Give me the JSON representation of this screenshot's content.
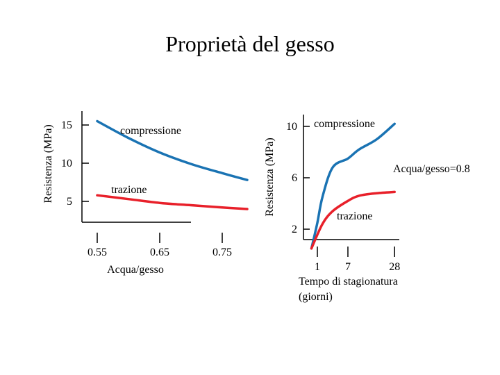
{
  "page": {
    "title": "Proprietà del gesso"
  },
  "colors": {
    "compressione": "#1a73b3",
    "trazione": "#e8202a",
    "axis": "#000000"
  },
  "chart_data": [
    {
      "type": "line",
      "title": "",
      "xlabel": "Acqua/gesso",
      "ylabel": "Resistenza (MPa)",
      "x_ticks": [
        "0.55",
        "0.65",
        "0.75"
      ],
      "y_ticks": [
        "5",
        "10",
        "15"
      ],
      "series": [
        {
          "name": "compressione",
          "x": [
            0.55,
            0.6,
            0.65,
            0.7,
            0.75,
            0.79
          ],
          "y": [
            15.5,
            13.3,
            11.4,
            9.9,
            8.7,
            7.8
          ]
        },
        {
          "name": "trazione",
          "x": [
            0.55,
            0.6,
            0.65,
            0.7,
            0.75,
            0.79
          ],
          "y": [
            5.8,
            5.3,
            4.8,
            4.5,
            4.2,
            4.0
          ]
        }
      ]
    },
    {
      "type": "line",
      "title": "",
      "xlabel": "Tempo di stagionatura (giorni)",
      "ylabel": "Resistenza (MPa)",
      "annotation": "Acqua/gesso=0.8",
      "x_ticks": [
        "1",
        "7",
        "28"
      ],
      "y_ticks": [
        "2",
        "6",
        "10"
      ],
      "series": [
        {
          "name": "compressione",
          "x": [
            0.5,
            1,
            2,
            4,
            7,
            12,
            20,
            28
          ],
          "y": [
            0.5,
            2.5,
            4.5,
            6.8,
            7.5,
            8.2,
            9.0,
            10.2
          ]
        },
        {
          "name": "trazione",
          "x": [
            0.5,
            2,
            4,
            7,
            12,
            20,
            28
          ],
          "y": [
            0.5,
            2.4,
            3.4,
            4.2,
            4.6,
            4.8,
            4.9
          ]
        }
      ]
    }
  ]
}
